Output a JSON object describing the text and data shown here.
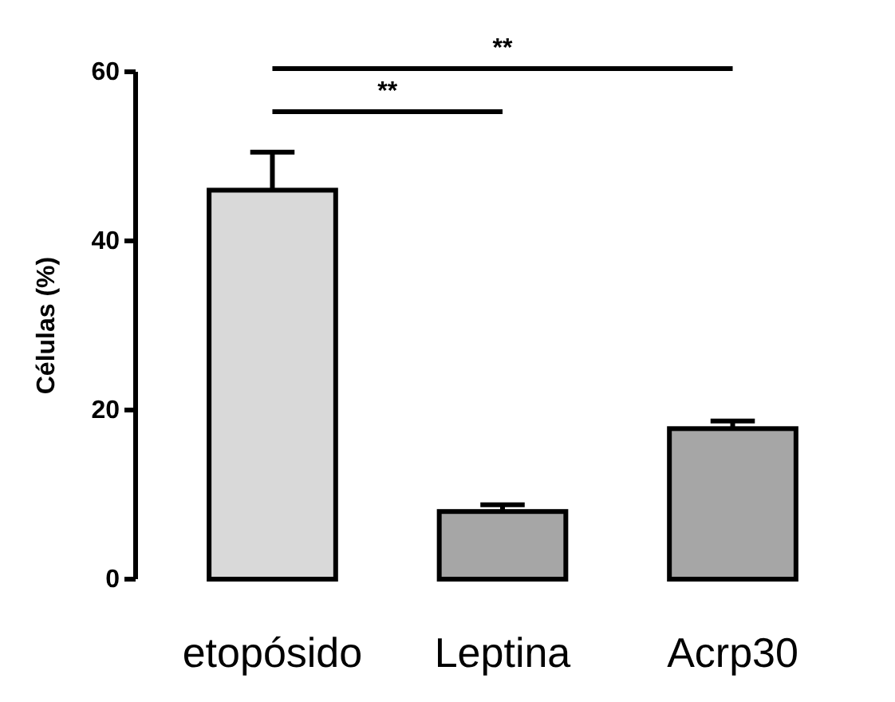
{
  "chart_data": {
    "type": "bar",
    "ylabel": "Células (%)",
    "categories": [
      "etopósido",
      "Leptina",
      "Acrp30"
    ],
    "values": [
      46,
      8,
      17.8
    ],
    "colors": [
      "#d9d9d9",
      "#a6a6a6",
      "#a6a6a6"
    ],
    "errors": [
      [
        46,
        50.5
      ],
      [
        8,
        8.8
      ],
      [
        17.8,
        18.7
      ]
    ],
    "ylim": [
      0,
      60
    ],
    "yticks": [
      0,
      20,
      40,
      60
    ],
    "grid": false,
    "annotations": [
      "**",
      "**"
    ]
  }
}
